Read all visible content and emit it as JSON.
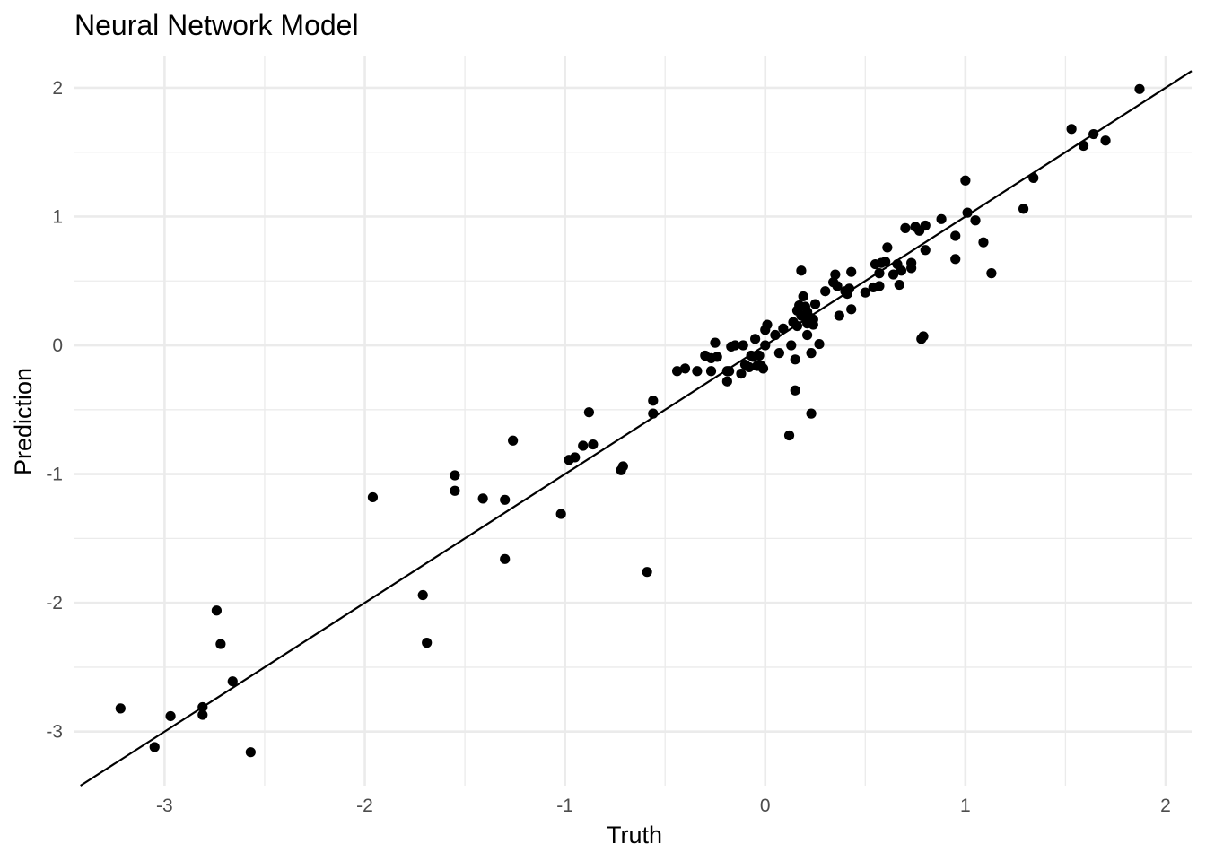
{
  "chart_data": {
    "type": "scatter",
    "title": "Neural Network Model",
    "xlabel": "Truth",
    "ylabel": "Prediction",
    "xlim": [
      -3.45,
      2.13
    ],
    "ylim": [
      -3.42,
      2.25
    ],
    "x_ticks": [
      -3,
      -2,
      -1,
      0,
      1,
      2
    ],
    "y_ticks": [
      -3,
      -2,
      -1,
      0,
      1,
      2
    ],
    "grid": true,
    "reference_line": {
      "slope": 1,
      "intercept": 0
    },
    "colors": {
      "points": "#000000",
      "grid": "#ebebeb",
      "line": "#000000"
    },
    "points": [
      [
        -3.22,
        -2.82
      ],
      [
        -3.05,
        -3.12
      ],
      [
        -2.97,
        -2.88
      ],
      [
        -2.81,
        -2.87
      ],
      [
        -2.81,
        -2.81
      ],
      [
        -2.74,
        -2.06
      ],
      [
        -2.72,
        -2.32
      ],
      [
        -2.66,
        -2.61
      ],
      [
        -2.57,
        -3.16
      ],
      [
        -1.96,
        -1.18
      ],
      [
        -1.71,
        -1.94
      ],
      [
        -1.69,
        -2.31
      ],
      [
        -1.55,
        -1.01
      ],
      [
        -1.55,
        -1.13
      ],
      [
        -1.41,
        -1.19
      ],
      [
        -1.3,
        -1.2
      ],
      [
        -1.3,
        -1.66
      ],
      [
        -1.26,
        -0.74
      ],
      [
        -1.02,
        -1.31
      ],
      [
        -0.98,
        -0.89
      ],
      [
        -0.95,
        -0.87
      ],
      [
        -0.91,
        -0.78
      ],
      [
        -0.88,
        -0.52
      ],
      [
        -0.86,
        -0.77
      ],
      [
        -0.72,
        -0.97
      ],
      [
        -0.71,
        -0.94
      ],
      [
        -0.59,
        -1.76
      ],
      [
        -0.56,
        -0.43
      ],
      [
        -0.56,
        -0.53
      ],
      [
        -0.44,
        -0.2
      ],
      [
        -0.4,
        -0.18
      ],
      [
        -0.34,
        -0.2
      ],
      [
        -0.3,
        -0.08
      ],
      [
        -0.27,
        -0.2
      ],
      [
        -0.27,
        -0.1
      ],
      [
        -0.25,
        0.02
      ],
      [
        -0.24,
        -0.09
      ],
      [
        -0.19,
        -0.2
      ],
      [
        -0.19,
        -0.28
      ],
      [
        -0.18,
        -0.2
      ],
      [
        -0.17,
        -0.01
      ],
      [
        -0.15,
        0.0
      ],
      [
        -0.12,
        -0.22
      ],
      [
        -0.11,
        0.0
      ],
      [
        -0.1,
        -0.15
      ],
      [
        -0.08,
        -0.17
      ],
      [
        -0.07,
        -0.08
      ],
      [
        -0.06,
        -0.09
      ],
      [
        -0.05,
        0.05
      ],
      [
        -0.04,
        -0.16
      ],
      [
        -0.03,
        -0.08
      ],
      [
        -0.02,
        -0.16
      ],
      [
        -0.01,
        -0.18
      ],
      [
        0.0,
        0.0
      ],
      [
        0.0,
        0.12
      ],
      [
        0.01,
        0.16
      ],
      [
        0.05,
        0.08
      ],
      [
        0.07,
        -0.06
      ],
      [
        0.09,
        0.13
      ],
      [
        0.12,
        -0.7
      ],
      [
        0.13,
        0.0
      ],
      [
        0.14,
        0.18
      ],
      [
        0.15,
        -0.11
      ],
      [
        0.15,
        -0.35
      ],
      [
        0.16,
        0.15
      ],
      [
        0.16,
        0.27
      ],
      [
        0.17,
        0.31
      ],
      [
        0.18,
        0.58
      ],
      [
        0.18,
        0.23
      ],
      [
        0.19,
        0.38
      ],
      [
        0.2,
        0.3
      ],
      [
        0.21,
        0.08
      ],
      [
        0.21,
        0.17
      ],
      [
        0.21,
        0.26
      ],
      [
        0.22,
        0.22
      ],
      [
        0.23,
        -0.06
      ],
      [
        0.23,
        -0.53
      ],
      [
        0.24,
        0.16
      ],
      [
        0.24,
        0.2
      ],
      [
        0.25,
        0.32
      ],
      [
        0.27,
        0.01
      ],
      [
        0.3,
        0.42
      ],
      [
        0.34,
        0.49
      ],
      [
        0.35,
        0.55
      ],
      [
        0.36,
        0.46
      ],
      [
        0.37,
        0.23
      ],
      [
        0.4,
        0.42
      ],
      [
        0.41,
        0.4
      ],
      [
        0.42,
        0.44
      ],
      [
        0.43,
        0.57
      ],
      [
        0.43,
        0.28
      ],
      [
        0.5,
        0.41
      ],
      [
        0.54,
        0.45
      ],
      [
        0.55,
        0.63
      ],
      [
        0.57,
        0.56
      ],
      [
        0.57,
        0.46
      ],
      [
        0.58,
        0.64
      ],
      [
        0.6,
        0.65
      ],
      [
        0.61,
        0.76
      ],
      [
        0.64,
        0.55
      ],
      [
        0.66,
        0.63
      ],
      [
        0.67,
        0.47
      ],
      [
        0.68,
        0.58
      ],
      [
        0.7,
        0.91
      ],
      [
        0.73,
        0.6
      ],
      [
        0.73,
        0.64
      ],
      [
        0.75,
        0.92
      ],
      [
        0.77,
        0.89
      ],
      [
        0.78,
        0.05
      ],
      [
        0.79,
        0.07
      ],
      [
        0.8,
        0.93
      ],
      [
        0.8,
        0.74
      ],
      [
        0.88,
        0.98
      ],
      [
        0.95,
        0.67
      ],
      [
        0.95,
        0.85
      ],
      [
        1.0,
        1.28
      ],
      [
        1.01,
        1.03
      ],
      [
        1.05,
        0.97
      ],
      [
        1.09,
        0.8
      ],
      [
        1.13,
        0.56
      ],
      [
        1.29,
        1.06
      ],
      [
        1.34,
        1.3
      ],
      [
        1.53,
        1.68
      ],
      [
        1.59,
        1.55
      ],
      [
        1.64,
        1.64
      ],
      [
        1.7,
        1.59
      ],
      [
        1.87,
        1.99
      ]
    ]
  }
}
